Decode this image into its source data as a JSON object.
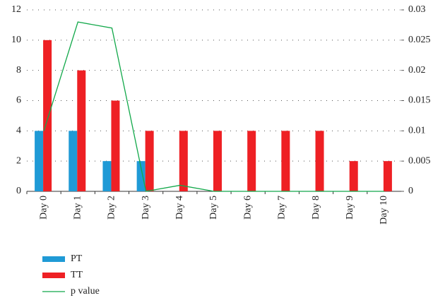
{
  "chart_data": {
    "type": "bar",
    "categories": [
      "Day 0",
      "Day 1",
      "Day 2",
      "Day 3",
      "Day 4",
      "Day 5",
      "Day 6",
      "Day 7",
      "Day 8",
      "Day 9",
      "Day 10"
    ],
    "series": [
      {
        "name": "PT",
        "color": "#1f9ad6",
        "values": [
          4,
          4,
          2,
          2,
          0,
          0,
          0,
          0,
          0,
          0,
          0
        ]
      },
      {
        "name": "TT",
        "color": "#ee2024",
        "values": [
          10,
          8,
          6,
          4,
          4,
          4,
          4,
          4,
          4,
          2,
          2
        ]
      },
      {
        "name": "p value",
        "color": "#12a84a",
        "type": "line",
        "axis": "y2",
        "values": [
          0.01,
          0.028,
          0.027,
          0,
          0.001,
          0,
          0,
          0,
          0,
          0,
          0
        ]
      }
    ],
    "ylim": [
      0,
      12
    ],
    "yticks": [
      0,
      2,
      4,
      6,
      8,
      10,
      12
    ],
    "y2lim": [
      0,
      0.03
    ],
    "y2ticks": [
      0,
      0.005,
      0.01,
      0.015,
      0.02,
      0.025,
      0.03
    ],
    "grid": true,
    "legend": "bottom-left"
  }
}
